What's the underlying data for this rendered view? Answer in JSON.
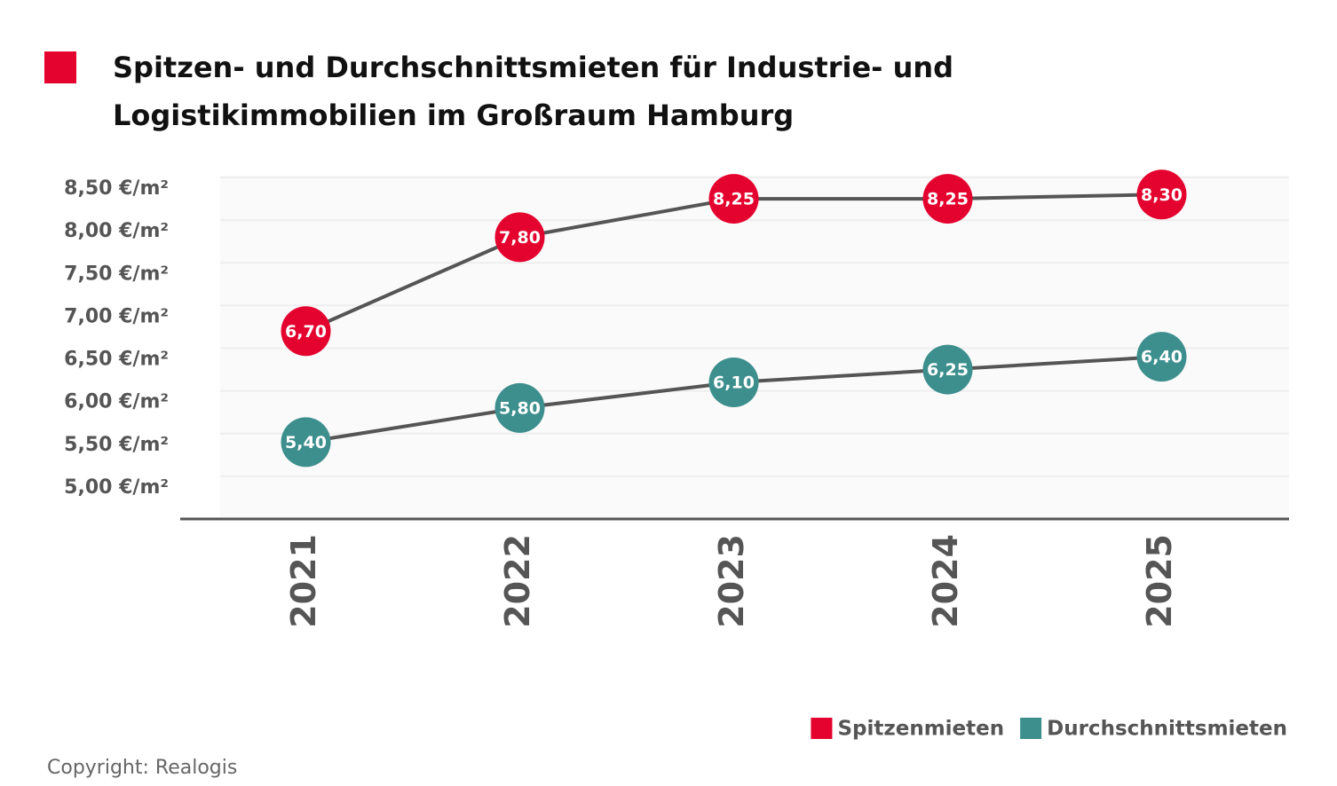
{
  "chart_data": {
    "type": "line",
    "title": [
      "Spitzen- und Durchschnittsmieten für Industrie- und",
      "Logistikimmobilien im Großraum Hamburg"
    ],
    "categories": [
      "2021",
      "2022",
      "2023",
      "2024",
      "2025"
    ],
    "series": [
      {
        "name": "Spitzenmieten",
        "color": "#e4032e",
        "values": [
          6.7,
          7.8,
          8.25,
          8.25,
          8.3
        ],
        "value_labels": [
          "6,70",
          "7,80",
          "8,25",
          "8,25",
          "8,30"
        ]
      },
      {
        "name": "Durchschnittsmieten",
        "color": "#3d8f8e",
        "values": [
          5.4,
          5.8,
          6.1,
          6.25,
          6.4
        ],
        "value_labels": [
          "5,40",
          "5,80",
          "6,10",
          "6,25",
          "6,40"
        ]
      }
    ],
    "ylim": [
      4.5,
      8.5
    ],
    "yticks": [
      {
        "value": 5,
        "label": "5,00 €/m²"
      },
      {
        "value": 5.5,
        "label": "5,50 €/m²"
      },
      {
        "value": 6,
        "label": "6,00 €/m²"
      },
      {
        "value": 6.5,
        "label": "6,50 €/m²"
      },
      {
        "value": 7,
        "label": "7,00 €/m²"
      },
      {
        "value": 7.5,
        "label": "7,50 €/m²"
      },
      {
        "value": 8,
        "label": "8,00 €/m²"
      },
      {
        "value": 8.5,
        "label": "8,50 €/m²"
      }
    ],
    "grid": true,
    "line_color": "#555555",
    "legend": "bottom-right",
    "source": "Copyright: Realogis"
  }
}
